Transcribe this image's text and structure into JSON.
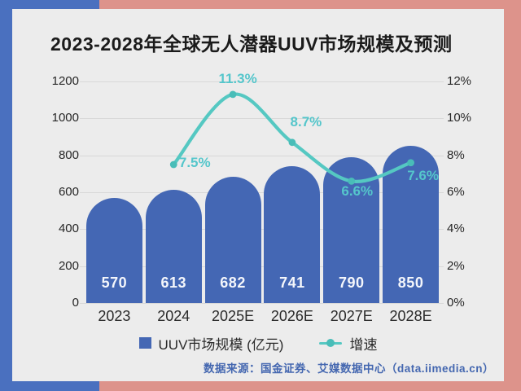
{
  "page": {
    "title": "2023-2028年全球无人潜器UUV市场规模及预测",
    "source": "数据来源：国金证券、艾媒数据中心（data.iimedia.cn）"
  },
  "legend": {
    "bar_label": "UUV市场规模 (亿元)",
    "line_label": "增速"
  },
  "colors": {
    "background_blue": "#4a70bf",
    "background_pink": "#dd938b",
    "card": "#ececec",
    "bar": "#4467b4",
    "line": "#55c8c2",
    "growth_label": "#55c6cb",
    "source_text": "#4467b0"
  },
  "chart_data": {
    "type": "bar+line",
    "title": "2023-2028年全球无人潜器UUV市场规模及预测",
    "categories": [
      "2023",
      "2024",
      "2025E",
      "2026E",
      "2027E",
      "2028E"
    ],
    "series": [
      {
        "name": "UUV市场规模 (亿元)",
        "type": "bar",
        "axis": "left",
        "values": [
          570,
          613,
          682,
          741,
          790,
          850
        ]
      },
      {
        "name": "增速",
        "type": "line",
        "axis": "right",
        "values": [
          null,
          7.5,
          11.3,
          8.7,
          6.6,
          7.6
        ],
        "labels": [
          null,
          "7.5%",
          "11.3%",
          "8.7%",
          "6.6%",
          "7.6%"
        ]
      }
    ],
    "left_axis": {
      "min": 0,
      "max": 1200,
      "ticks": [
        "1200",
        "1000",
        "800",
        "600",
        "400",
        "200",
        "0"
      ]
    },
    "right_axis": {
      "min": 0,
      "max": 12,
      "ticks": [
        "12%",
        "10%",
        "8%",
        "6%",
        "4%",
        "2%",
        "0%"
      ]
    },
    "grid": true,
    "legend_position": "bottom"
  }
}
